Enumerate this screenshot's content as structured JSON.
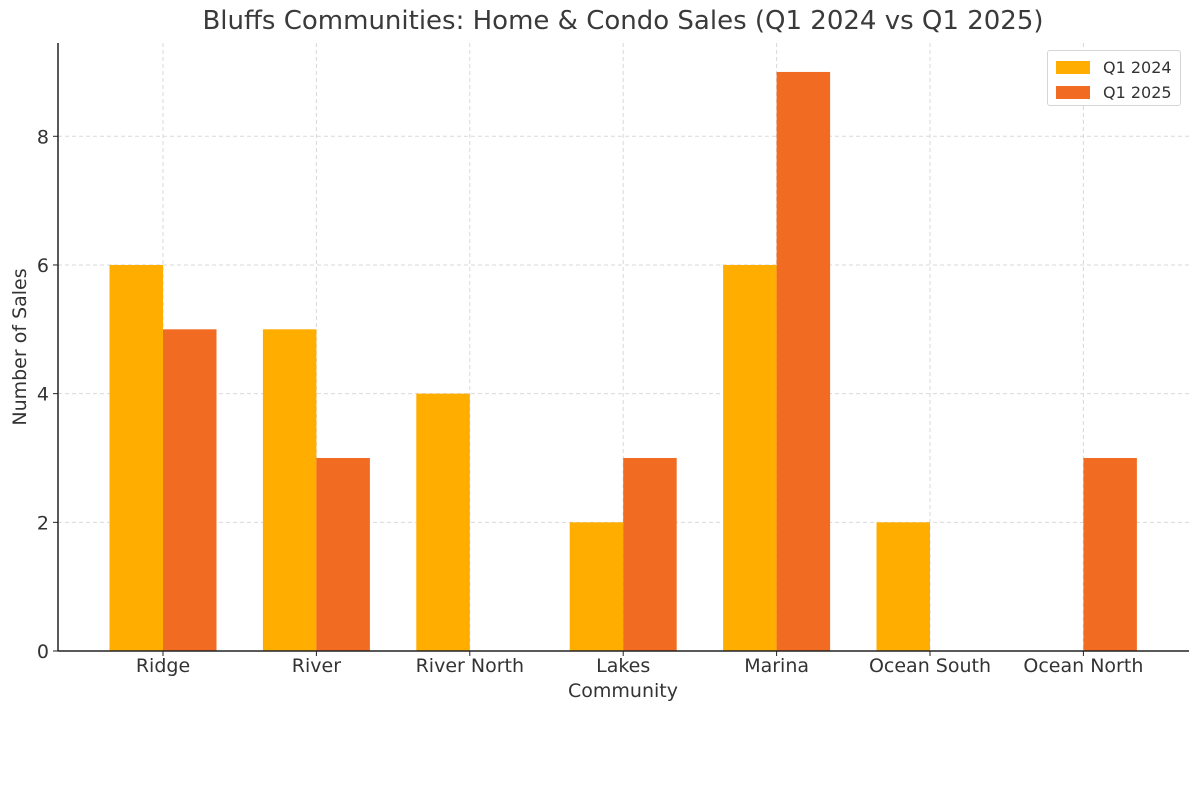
{
  "chart_data": {
    "type": "bar",
    "title": "Bluffs Communities: Home & Condo Sales (Q1 2024 vs Q1 2025)",
    "xlabel": "Community",
    "ylabel": "Number of Sales",
    "categories": [
      "Ridge",
      "River",
      "River North",
      "Lakes",
      "Marina",
      "Ocean South",
      "Ocean North"
    ],
    "series": [
      {
        "name": "Q1 2024",
        "color": "#FFAE00",
        "values": [
          6,
          5,
          4,
          2,
          6,
          2,
          0
        ]
      },
      {
        "name": "Q1 2025",
        "color": "#F26B22",
        "values": [
          5,
          3,
          0,
          3,
          9,
          0,
          3
        ]
      }
    ],
    "ylim": [
      0,
      9.45
    ],
    "yticks": [
      0,
      2,
      4,
      6,
      8
    ],
    "grid": true,
    "legend_position": "top-right"
  }
}
